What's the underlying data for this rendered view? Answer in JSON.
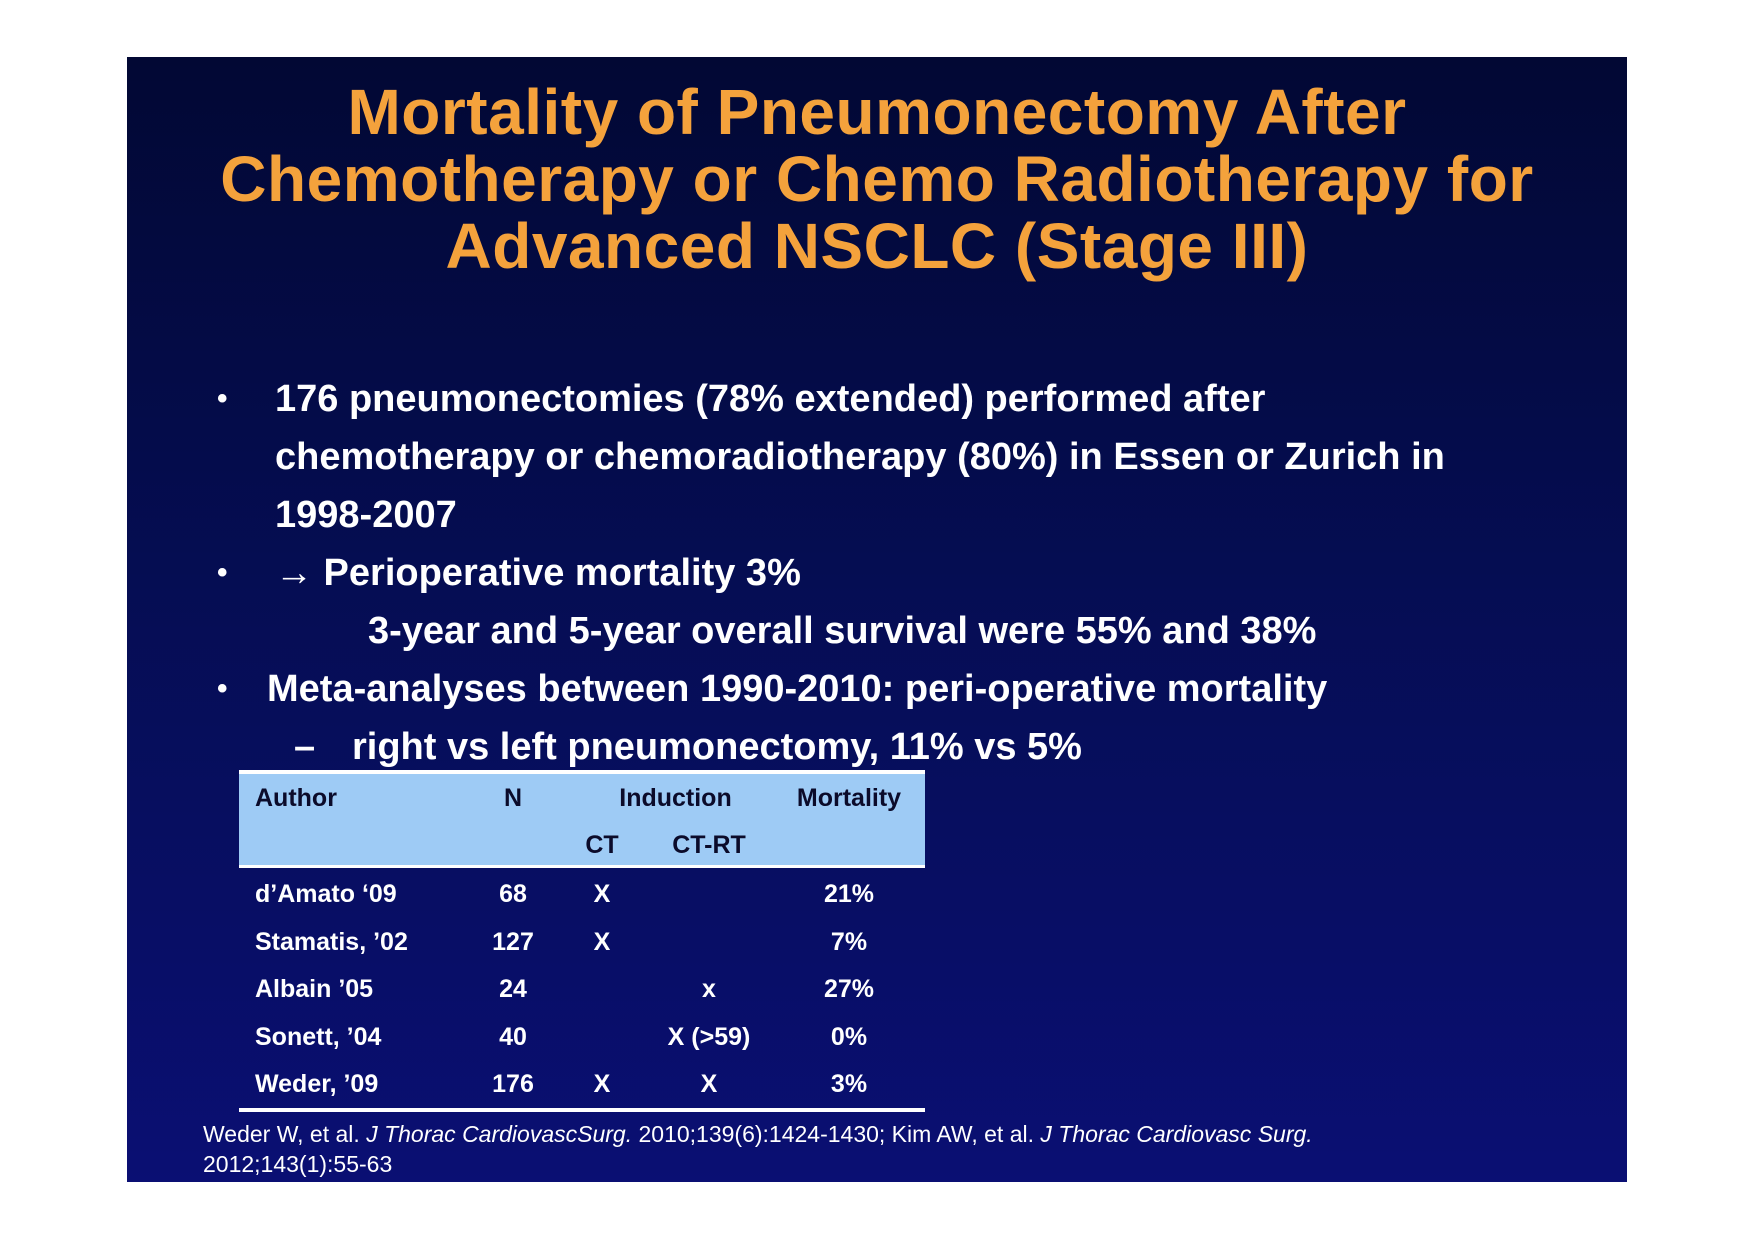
{
  "title": {
    "line1": "Mortality of Pneumonectomy After",
    "line2": "Chemotherapy or Chemo Radiotherapy for",
    "line3": "Advanced NSCLC (Stage III)"
  },
  "bullets": {
    "b1_line1": "176 pneumonectomies (78% extended) performed after",
    "b1_line2": "chemotherapy or chemoradiotherapy (80%) in Essen or Zurich in",
    "b1_line3": "1998-2007",
    "b2_line1": "→ Perioperative mortality 3%",
    "b2_line2": "3-year and 5-year overall survival were 55% and 38%",
    "b3_line1": "Meta-analyses between 1990-2010: peri-operative mortality",
    "sub1": "right vs left pneumonectomy, 11% vs 5%",
    "bullet_char": "•",
    "dash_char": "–"
  },
  "table": {
    "headers": {
      "author": "Author",
      "n": "N",
      "induction": "Induction",
      "mortality": "Mortality",
      "ct": "CT",
      "ctrt": "CT-RT"
    },
    "rows": [
      {
        "author": "d’Amato ‘09",
        "n": "68",
        "ct": "X",
        "ctrt": "",
        "mortality": "21%"
      },
      {
        "author": "Stamatis, ’02",
        "n": "127",
        "ct": "X",
        "ctrt": "",
        "mortality": "7%"
      },
      {
        "author": "Albain ’05",
        "n": "24",
        "ct": "",
        "ctrt": "x",
        "mortality": "27%"
      },
      {
        "author": "Sonett, ’04",
        "n": "40",
        "ct": "",
        "ctrt": "X (>59)",
        "mortality": "0%"
      },
      {
        "author": "Weder, ’09",
        "n": "176",
        "ct": "X",
        "ctrt": "X",
        "mortality": "3%"
      }
    ]
  },
  "reference": {
    "part1": "Weder W, et al. ",
    "journal1": "J Thorac CardiovascSurg.",
    "part2": " 2010;139(6):1424-1430; Kim AW, et al. ",
    "journal2": "J Thorac Cardiovasc Surg.",
    "part3": "2012;143(1):55-63"
  },
  "colors": {
    "title": "#f4a23c",
    "background_top": "#020834",
    "background_bottom": "#0a0f73",
    "table_header": "#9ecbf5"
  }
}
